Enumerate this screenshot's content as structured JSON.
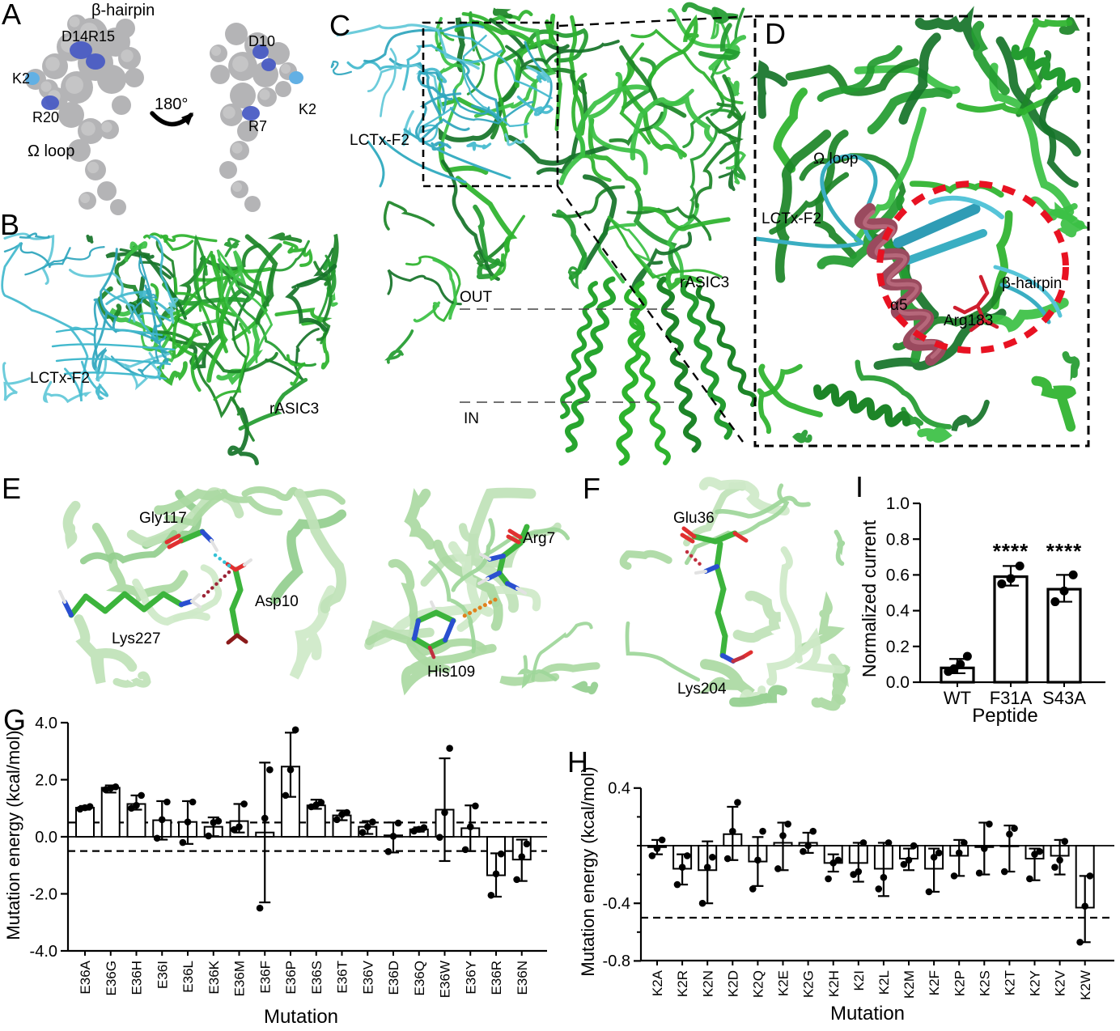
{
  "panels": {
    "a": {
      "letter": "A",
      "labels": {
        "beta_hairpin": "β-hairpin",
        "d14r15": "D14R15",
        "k2_left": "K2",
        "r20": "R20",
        "omega_loop": "Ω loop",
        "rotation": "180°",
        "d10": "D10",
        "k2_right": "K2",
        "r7": "R7"
      }
    },
    "b": {
      "letter": "B",
      "labels": {
        "peptide": "LCTx-F2",
        "channel": "rASIC3"
      }
    },
    "c": {
      "letter": "C",
      "labels": {
        "peptide": "LCTx-F2",
        "channel": "rASIC3",
        "out": "OUT",
        "inn": "IN"
      }
    },
    "d": {
      "letter": "D",
      "labels": {
        "omega_loop": "Ω loop",
        "peptide": "LCTx-F2",
        "alpha5": "α5",
        "arg183": "Arg183",
        "beta_hairpin": "β-hairpin"
      }
    },
    "e": {
      "letter": "E",
      "labels": {
        "gly117": "Gly117",
        "asp10": "Asp10",
        "lys227": "Lys227",
        "arg7": "Arg7",
        "his109": "His109"
      }
    },
    "f": {
      "letter": "F",
      "labels": {
        "glu36": "Glu36",
        "lys204": "Lys204"
      }
    },
    "g": {
      "letter": "G"
    },
    "h": {
      "letter": "H"
    },
    "i": {
      "letter": "I"
    }
  },
  "colors": {
    "green_bright": "#2db32d",
    "green_dark": "#1d8528",
    "cyan": "#43b9cd",
    "maroon": "#9a4a5e",
    "red_accent": "#e81222",
    "blue_residue": "#4a5cc4",
    "light_blue_residue": "#62b0e4",
    "gray_surface": "#b4b4b6"
  },
  "chart_data": [
    {
      "id": "chart-g",
      "type": "bar",
      "ylabel": "Mutation energy (kcal/mol)",
      "xlabel": "Mutation",
      "ylim": [
        -4.0,
        4.0
      ],
      "yticks": [
        {
          "v": 4.0,
          "label": "4.0"
        },
        {
          "v": 2.0,
          "label": "2.0"
        },
        {
          "v": 0.0,
          "label": "0.0"
        },
        {
          "v": -2.0,
          "label": "-2.0"
        },
        {
          "v": -4.0,
          "label": "-4.0"
        }
      ],
      "minor_yticks": [],
      "reference_lines_dashed": [
        0.5,
        -0.5
      ],
      "zero_line": true,
      "categories": [
        "E36A",
        "E36G",
        "E36H",
        "E36I",
        "E36L",
        "E36K",
        "E36M",
        "E36F",
        "E36P",
        "E36S",
        "E36T",
        "E36V",
        "E36D",
        "E36Q",
        "E36W",
        "E36Y",
        "E36R",
        "E36N"
      ],
      "values": [
        1.02,
        1.72,
        1.15,
        0.58,
        0.52,
        0.35,
        0.55,
        0.15,
        2.46,
        1.1,
        0.75,
        0.35,
        0.05,
        0.26,
        0.95,
        0.3,
        -1.35,
        -0.8
      ],
      "error_low": [
        0.95,
        1.55,
        0.95,
        -0.1,
        -0.25,
        0.02,
        0.15,
        -2.3,
        1.4,
        0.98,
        0.58,
        0.1,
        -0.55,
        0.18,
        -0.85,
        -0.5,
        -2.1,
        -1.55
      ],
      "error_high": [
        1.08,
        1.8,
        1.45,
        1.25,
        1.25,
        0.68,
        1.15,
        2.6,
        3.65,
        1.3,
        0.92,
        0.55,
        0.5,
        0.33,
        2.75,
        1.1,
        -0.58,
        -0.1
      ],
      "points": [
        [
          0.97,
          1.02,
          1.06
        ],
        [
          1.65,
          1.7,
          1.75
        ],
        [
          1.0,
          1.1,
          1.45
        ],
        [
          -0.05,
          0.6,
          1.22
        ],
        [
          -0.2,
          0.52,
          1.22
        ],
        [
          0.03,
          0.5,
          0.55
        ],
        [
          0.25,
          0.35,
          1.15
        ],
        [
          -2.5,
          0.65,
          2.35
        ],
        [
          1.45,
          2.35,
          3.75
        ],
        [
          1.05,
          1.12,
          1.2
        ],
        [
          0.6,
          0.78,
          0.85
        ],
        [
          0.15,
          0.35,
          0.52
        ],
        [
          -0.52,
          0.02,
          0.48
        ],
        [
          0.2,
          0.26,
          0.32
        ],
        [
          -0.02,
          0.85,
          3.1
        ],
        [
          -0.45,
          0.35,
          1.08
        ],
        [
          -2.05,
          -1.3,
          -0.6
        ],
        [
          -1.5,
          -0.7,
          -0.25
        ]
      ]
    },
    {
      "id": "chart-h",
      "type": "bar",
      "ylabel": "Mutation energy (kcal/mol)",
      "xlabel": "Mutation",
      "ylim": [
        -0.8,
        0.4
      ],
      "yticks": [
        {
          "v": 0.4,
          "label": "0.4"
        },
        {
          "v": -0.4,
          "label": "-0.4"
        },
        {
          "v": -0.8,
          "label": "-0.8"
        }
      ],
      "minor_yticks": [
        0.2,
        0.0,
        -0.2,
        -0.6
      ],
      "reference_lines_dashed": [
        -0.5
      ],
      "zero_line": true,
      "categories": [
        "K2A",
        "K2R",
        "K2N",
        "K2D",
        "K2Q",
        "K2E",
        "K2G",
        "K2H",
        "K2I",
        "K2L",
        "K2M",
        "K2F",
        "K2P",
        "K2S",
        "K2T",
        "K2Y",
        "K2V",
        "K2W"
      ],
      "values": [
        -0.01,
        -0.16,
        -0.17,
        0.08,
        -0.11,
        0.02,
        0.02,
        -0.12,
        -0.12,
        -0.16,
        -0.09,
        -0.16,
        -0.07,
        -0.01,
        0.0,
        -0.09,
        -0.07,
        -0.43
      ],
      "error_low": [
        -0.06,
        -0.27,
        -0.4,
        -0.1,
        -0.28,
        -0.17,
        -0.05,
        -0.18,
        -0.25,
        -0.35,
        -0.17,
        -0.32,
        -0.21,
        -0.2,
        -0.18,
        -0.24,
        -0.2,
        -0.67
      ],
      "error_high": [
        0.04,
        -0.06,
        0.03,
        0.27,
        0.06,
        0.16,
        0.09,
        -0.06,
        0.02,
        0.02,
        -0.02,
        -0.02,
        0.04,
        0.16,
        0.14,
        -0.02,
        0.04,
        -0.21
      ],
      "points": [
        [
          -0.07,
          -0.02,
          0.04
        ],
        [
          -0.27,
          -0.15,
          -0.07
        ],
        [
          -0.4,
          -0.15,
          -0.08
        ],
        [
          -0.09,
          0.1,
          0.3
        ],
        [
          -0.3,
          -0.1,
          0.1
        ],
        [
          -0.16,
          0.07,
          0.15
        ],
        [
          -0.04,
          0.0,
          0.1
        ],
        [
          -0.23,
          -0.12,
          -0.1
        ],
        [
          -0.2,
          -0.18,
          0.02
        ],
        [
          -0.3,
          -0.22,
          0.02
        ],
        [
          -0.13,
          -0.1,
          0.0
        ],
        [
          -0.32,
          -0.08,
          -0.05
        ],
        [
          -0.21,
          -0.05,
          0.02
        ],
        [
          -0.19,
          -0.02,
          0.15
        ],
        [
          -0.18,
          0.08,
          0.12
        ],
        [
          -0.23,
          -0.06,
          -0.04
        ],
        [
          -0.15,
          -0.1,
          0.03
        ],
        [
          -0.67,
          -0.42,
          -0.21
        ]
      ]
    },
    {
      "id": "chart-i",
      "type": "bar",
      "ylabel": "Normalized current",
      "xlabel": "Peptide",
      "ylim": [
        0.0,
        1.0
      ],
      "yticks": [
        {
          "v": 1.0,
          "label": "1.0"
        },
        {
          "v": 0.8,
          "label": "0.8"
        },
        {
          "v": 0.6,
          "label": "0.6"
        },
        {
          "v": 0.4,
          "label": "0.4"
        },
        {
          "v": 0.2,
          "label": "0.2"
        },
        {
          "v": 0.0,
          "label": "0.0"
        }
      ],
      "minor_yticks": [],
      "reference_lines_dashed": [],
      "zero_line": false,
      "categories": [
        "WT",
        "F31A",
        "S43A"
      ],
      "values": [
        0.08,
        0.59,
        0.52
      ],
      "error_low": [
        0.05,
        0.54,
        0.45
      ],
      "error_high": [
        0.13,
        0.65,
        0.6
      ],
      "points": [
        [
          0.06,
          0.075,
          0.1,
          0.145
        ],
        [
          0.55,
          0.58,
          0.65
        ],
        [
          0.45,
          0.51,
          0.6
        ]
      ],
      "significance": [
        "",
        "****",
        "****"
      ]
    }
  ]
}
